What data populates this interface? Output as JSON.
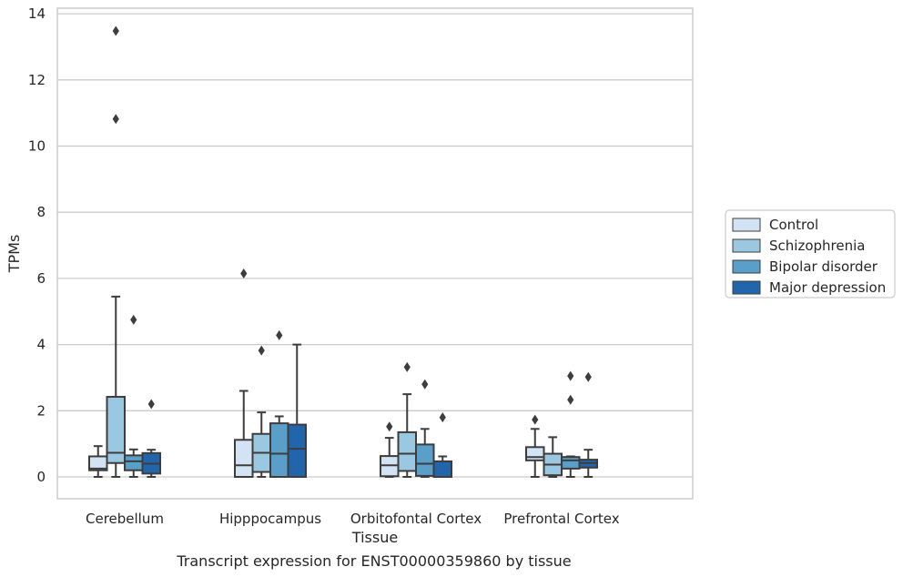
{
  "chart_data": {
    "type": "box",
    "title": "",
    "caption": "Transcript expression for ENST00000359860 by tissue",
    "xlabel": "Tissue",
    "ylabel": "TPMs",
    "ylim": [
      -0.65,
      14.2
    ],
    "yticks": [
      0,
      2,
      4,
      6,
      8,
      10,
      12,
      14
    ],
    "grid": "horizontal",
    "legend_position": "right",
    "categories": [
      "Cerebellum",
      "Hipppocampus",
      "Orbitofontal Cortex",
      "Prefrontal Cortex"
    ],
    "series": [
      {
        "name": "Control",
        "color": "#d2e3f3",
        "boxes": [
          {
            "whislo": 0,
            "q1": 0.2,
            "med": 0.25,
            "q3": 0.62,
            "whishi": 0.93,
            "fliers": []
          },
          {
            "whislo": 0,
            "q1": 0,
            "med": 0.35,
            "q3": 1.12,
            "whishi": 2.6,
            "fliers": [
              6.15
            ]
          },
          {
            "whislo": 0,
            "q1": 0.02,
            "med": 0.35,
            "q3": 0.63,
            "whishi": 1.18,
            "fliers": [
              1.52
            ]
          },
          {
            "whislo": 0,
            "q1": 0.5,
            "med": 0.6,
            "q3": 0.9,
            "whishi": 1.45,
            "fliers": [
              1.73
            ]
          }
        ]
      },
      {
        "name": "Schizophrenia",
        "color": "#9ac8e0",
        "boxes": [
          {
            "whislo": 0,
            "q1": 0.42,
            "med": 0.73,
            "q3": 2.42,
            "whishi": 5.45,
            "fliers": [
              10.82,
              13.48
            ]
          },
          {
            "whislo": 0,
            "q1": 0.15,
            "med": 0.73,
            "q3": 1.3,
            "whishi": 1.95,
            "fliers": [
              3.82
            ]
          },
          {
            "whislo": 0,
            "q1": 0.18,
            "med": 0.7,
            "q3": 1.35,
            "whishi": 2.5,
            "fliers": [
              3.32
            ]
          },
          {
            "whislo": 0,
            "q1": 0.05,
            "med": 0.37,
            "q3": 0.7,
            "whishi": 1.2,
            "fliers": []
          }
        ]
      },
      {
        "name": "Bipolar disorder",
        "color": "#5a9fc9",
        "boxes": [
          {
            "whislo": 0,
            "q1": 0.2,
            "med": 0.47,
            "q3": 0.65,
            "whishi": 0.83,
            "fliers": [
              4.75
            ]
          },
          {
            "whislo": 0,
            "q1": 0,
            "med": 0.7,
            "q3": 1.62,
            "whishi": 1.83,
            "fliers": [
              4.28
            ]
          },
          {
            "whislo": 0,
            "q1": 0.03,
            "med": 0.4,
            "q3": 0.98,
            "whishi": 1.45,
            "fliers": [
              2.8
            ]
          },
          {
            "whislo": 0,
            "q1": 0.25,
            "med": 0.5,
            "q3": 0.6,
            "whishi": 0.62,
            "fliers": [
              2.33,
              3.05
            ]
          }
        ]
      },
      {
        "name": "Major depression",
        "color": "#2166ac",
        "boxes": [
          {
            "whislo": 0,
            "q1": 0.1,
            "med": 0.4,
            "q3": 0.72,
            "whishi": 0.82,
            "fliers": [
              2.2
            ]
          },
          {
            "whislo": 0,
            "q1": 0,
            "med": 0.85,
            "q3": 1.58,
            "whishi": 4.0,
            "fliers": []
          },
          {
            "whislo": 0,
            "q1": 0,
            "med": 0,
            "q3": 0.47,
            "whishi": 0.62,
            "fliers": [
              1.8
            ]
          },
          {
            "whislo": 0,
            "q1": 0.28,
            "med": 0.42,
            "q3": 0.52,
            "whishi": 0.82,
            "fliers": [
              3.02
            ]
          }
        ]
      }
    ]
  }
}
